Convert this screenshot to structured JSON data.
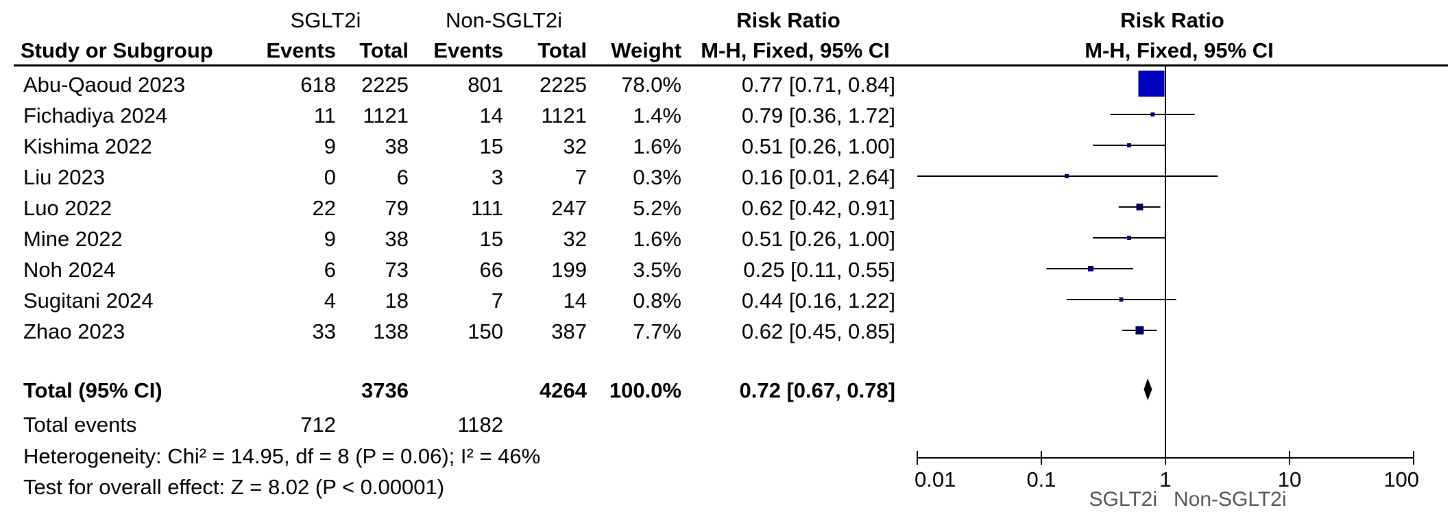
{
  "header": {
    "group1": "SGLT2i",
    "group2": "Non-SGLT2i",
    "rr_title": "Risk Ratio",
    "rr_method": "M-H, Fixed, 95% CI",
    "plot_title": "Risk Ratio",
    "plot_method": "M-H, Fixed, 95% CI",
    "study_col": "Study or Subgroup",
    "events1": "Events",
    "total1": "Total",
    "events2": "Events",
    "total2": "Total",
    "weight": "Weight"
  },
  "studies": [
    {
      "name": "Abu-Qaoud 2023",
      "e1": "618",
      "t1": "2225",
      "e2": "801",
      "t2": "2225",
      "weight": "78.0%",
      "rr": "0.77 [0.71, 0.84]"
    },
    {
      "name": "Fichadiya 2024",
      "e1": "11",
      "t1": "1121",
      "e2": "14",
      "t2": "1121",
      "weight": "1.4%",
      "rr": "0.79 [0.36, 1.72]"
    },
    {
      "name": "Kishima 2022",
      "e1": "9",
      "t1": "38",
      "e2": "15",
      "t2": "32",
      "weight": "1.6%",
      "rr": "0.51 [0.26, 1.00]"
    },
    {
      "name": "Liu 2023",
      "e1": "0",
      "t1": "6",
      "e2": "3",
      "t2": "7",
      "weight": "0.3%",
      "rr": "0.16 [0.01, 2.64]"
    },
    {
      "name": "Luo 2022",
      "e1": "22",
      "t1": "79",
      "e2": "111",
      "t2": "247",
      "weight": "5.2%",
      "rr": "0.62 [0.42, 0.91]"
    },
    {
      "name": "Mine 2022",
      "e1": "9",
      "t1": "38",
      "e2": "15",
      "t2": "32",
      "weight": "1.6%",
      "rr": "0.51 [0.26, 1.00]"
    },
    {
      "name": "Noh 2024",
      "e1": "6",
      "t1": "73",
      "e2": "66",
      "t2": "199",
      "weight": "3.5%",
      "rr": "0.25 [0.11, 0.55]"
    },
    {
      "name": "Sugitani 2024",
      "e1": "4",
      "t1": "18",
      "e2": "7",
      "t2": "14",
      "weight": "0.8%",
      "rr": "0.44 [0.16, 1.22]"
    },
    {
      "name": "Zhao 2023",
      "e1": "33",
      "t1": "138",
      "e2": "150",
      "t2": "387",
      "weight": "7.7%",
      "rr": "0.62 [0.45, 0.85]"
    }
  ],
  "total": {
    "label": "Total (95% CI)",
    "t1": "3736",
    "t2": "4264",
    "weight": "100.0%",
    "rr": "0.72 [0.67, 0.78]"
  },
  "total_events": {
    "label": "Total events",
    "e1": "712",
    "e2": "1182"
  },
  "heterogeneity": "Heterogeneity: Chi² = 14.95, df = 8 (P = 0.06); I² = 46%",
  "overall_effect": "Test for overall effect: Z = 8.02 (P < 0.00001)",
  "axis": {
    "ticks": [
      0.01,
      0.1,
      1,
      10,
      100
    ],
    "tick_labels": [
      "0.01",
      "0.1",
      "1",
      "10",
      "100"
    ],
    "favours_left": "SGLT2i",
    "favours_right": "Non-SGLT2i"
  },
  "colors": {
    "square": "#0000C0",
    "point": "#000066",
    "diamond": "#000000",
    "line": "#000000"
  },
  "chart_data": {
    "type": "forest",
    "scale": "log",
    "xlim": [
      0.01,
      100
    ],
    "null_line": 1,
    "studies": [
      {
        "name": "Abu-Qaoud 2023",
        "rr": 0.77,
        "ci_low": 0.71,
        "ci_high": 0.84,
        "weight": 78.0
      },
      {
        "name": "Fichadiya 2024",
        "rr": 0.79,
        "ci_low": 0.36,
        "ci_high": 1.72,
        "weight": 1.4
      },
      {
        "name": "Kishima 2022",
        "rr": 0.51,
        "ci_low": 0.26,
        "ci_high": 1.0,
        "weight": 1.6
      },
      {
        "name": "Liu 2023",
        "rr": 0.16,
        "ci_low": 0.01,
        "ci_high": 2.64,
        "weight": 0.3
      },
      {
        "name": "Luo 2022",
        "rr": 0.62,
        "ci_low": 0.42,
        "ci_high": 0.91,
        "weight": 5.2
      },
      {
        "name": "Mine 2022",
        "rr": 0.51,
        "ci_low": 0.26,
        "ci_high": 1.0,
        "weight": 1.6
      },
      {
        "name": "Noh 2024",
        "rr": 0.25,
        "ci_low": 0.11,
        "ci_high": 0.55,
        "weight": 3.5
      },
      {
        "name": "Sugitani 2024",
        "rr": 0.44,
        "ci_low": 0.16,
        "ci_high": 1.22,
        "weight": 0.8
      },
      {
        "name": "Zhao 2023",
        "rr": 0.62,
        "ci_low": 0.45,
        "ci_high": 0.85,
        "weight": 7.7
      }
    ],
    "pooled": {
      "name": "Total (95% CI)",
      "rr": 0.72,
      "ci_low": 0.67,
      "ci_high": 0.78
    }
  }
}
